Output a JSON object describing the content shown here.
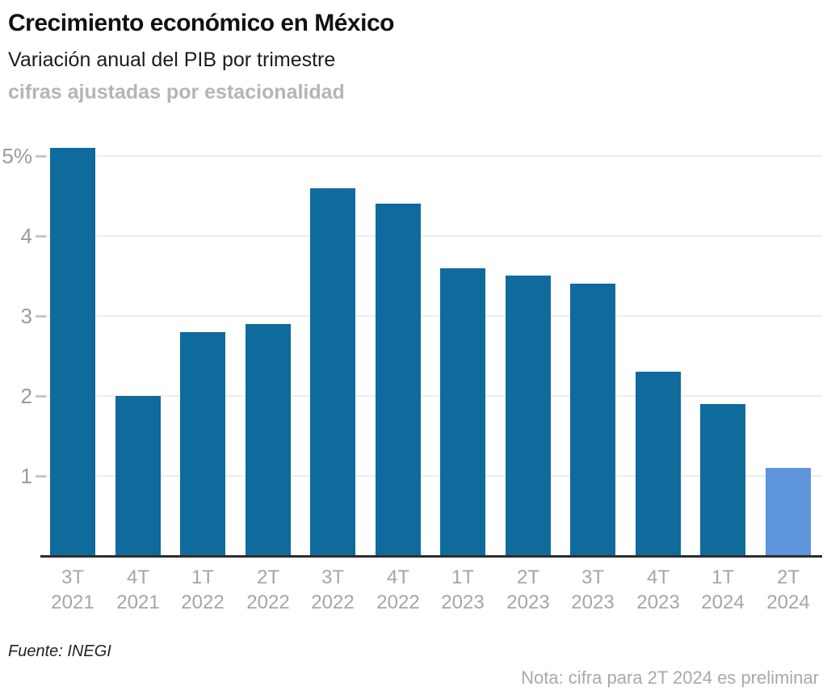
{
  "header": {
    "title": "Crecimiento económico en México",
    "subtitle": "Variación anual del PIB por trimestre",
    "subtitle2": "cifras ajustadas por estacionalidad"
  },
  "chart_data": {
    "type": "bar",
    "title": "Crecimiento económico en México",
    "subtitle": "Variación anual del PIB por trimestre",
    "categories": [
      "3T 2021",
      "4T 2021",
      "1T 2022",
      "2T 2022",
      "3T 2022",
      "4T 2022",
      "1T 2023",
      "2T 2023",
      "3T 2023",
      "4T 2023",
      "1T 2024",
      "2T 2024"
    ],
    "values": [
      5.1,
      2.0,
      2.8,
      2.9,
      4.6,
      4.4,
      3.6,
      3.5,
      3.4,
      2.3,
      1.9,
      1.1
    ],
    "highlight_index": 11,
    "highlight_meaning": "cifra preliminar",
    "xlabel": "",
    "ylabel": "",
    "ylim": [
      0,
      5.5
    ],
    "yticks": [
      1,
      2,
      3,
      4,
      5
    ],
    "ytick_labels": [
      "1",
      "2",
      "3",
      "4",
      "5%"
    ],
    "grid": "horizontal",
    "legend": "none",
    "colors": {
      "bar": "#0e6b9c",
      "bar_preliminary": "#5e94d9",
      "grid": "#ededed",
      "tick": "#c6c6c6",
      "axis": "#2e2e2e",
      "ytick_label": "#9b9b9b",
      "xtick_label": "#a6a6a6"
    }
  },
  "footer": {
    "source": "Fuente: INEGI",
    "note": "Nota: cifra para 2T 2024 es preliminar"
  }
}
